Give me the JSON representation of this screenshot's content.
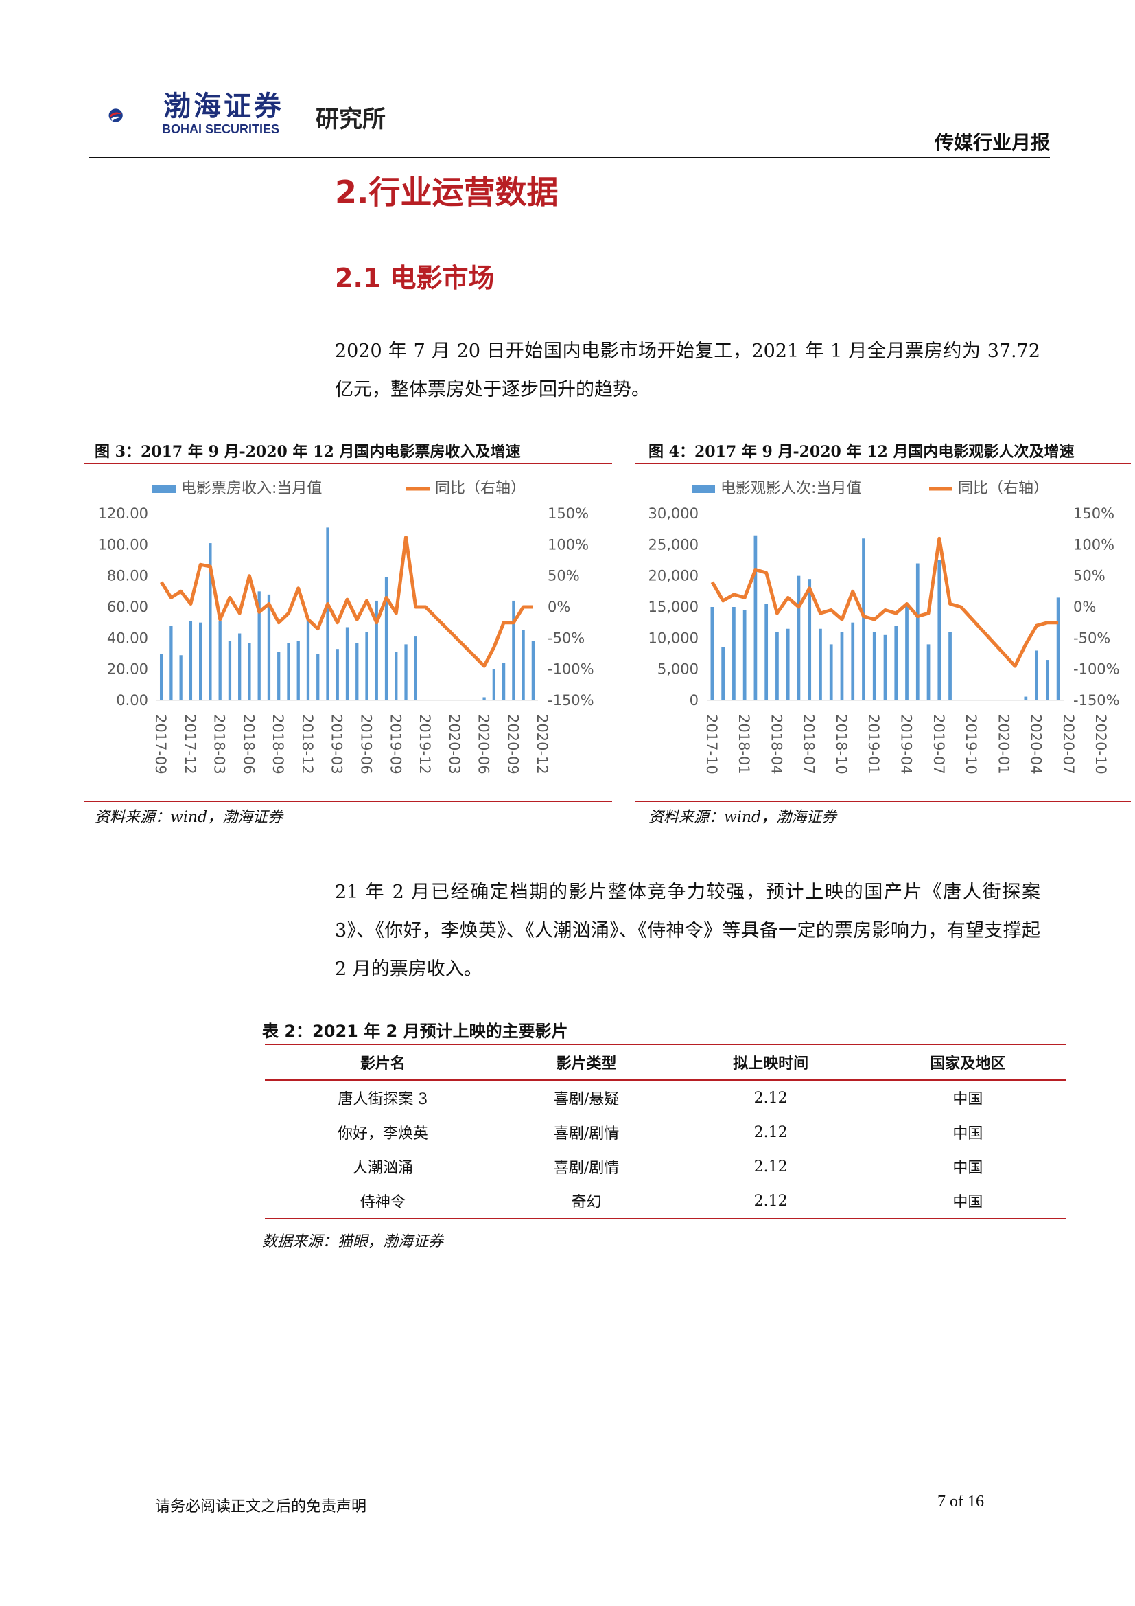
{
  "header": {
    "brand_cn": "渤海证券",
    "brand_en": "BOHAI SECURITIES",
    "institute": "研究所",
    "report_type": "传媒行业月报"
  },
  "section": {
    "title": "2.行业运营数据",
    "subtitle": "2.1 电影市场"
  },
  "paragraphs": {
    "p1": "2020 年 7 月 20 日开始国内电影市场开始复工，2021 年 1 月全月票房约为 37.72 亿元，整体票房处于逐步回升的趋势。",
    "p2": "21 年 2 月已经确定档期的影片整体竞争力较强，预计上映的国产片《唐人街探案 3》、《你好，李焕英》、《人潮汹涌》、《侍神令》等具备一定的票房影响力，有望支撑起 2 月的票房收入。"
  },
  "figures": {
    "fig3": {
      "caption": "图 3：2017 年 9 月-2020 年 12 月国内电影票房收入及增速",
      "source": "资料来源：wind，渤海证券"
    },
    "fig4": {
      "caption": "图 4：2017 年 9 月-2020 年 12 月国内电影观影人次及增速",
      "source": "资料来源：wind，渤海证券"
    }
  },
  "chart_data": [
    {
      "type": "bar",
      "legend": [
        "电影票房收入:当月值",
        "同比（右轴）"
      ],
      "ylim": [
        0,
        120
      ],
      "yticks": [
        "120.00",
        "100.00",
        "80.00",
        "60.00",
        "40.00",
        "20.00",
        "0.00"
      ],
      "y2lim": [
        -150,
        150
      ],
      "y2ticks": [
        "150%",
        "100%",
        "50%",
        "0%",
        "-50%",
        "-100%",
        "-150%"
      ],
      "xticks": [
        "2017-09",
        "2017-12",
        "2018-03",
        "2018-06",
        "2018-09",
        "2018-12",
        "2019-03",
        "2019-06",
        "2019-09",
        "2019-12",
        "2020-03",
        "2020-06",
        "2020-09",
        "2020-12"
      ],
      "colors": {
        "bar": "#5b9bd5",
        "line": "#ed7d31"
      },
      "series": [
        {
          "name": "电影票房收入:当月值",
          "values": [
            30,
            48,
            29,
            51,
            50,
            101,
            51,
            38,
            43,
            37,
            70,
            68,
            31,
            37,
            38,
            52,
            30,
            111,
            33,
            47,
            37,
            44,
            64,
            79,
            31,
            36,
            41,
            0,
            0,
            0,
            0,
            0,
            0,
            2,
            20,
            24,
            64,
            45,
            38
          ]
        },
        {
          "name": "同比（右轴）",
          "values": [
            40,
            15,
            25,
            5,
            68,
            65,
            -20,
            15,
            -10,
            50,
            -8,
            5,
            -25,
            -10,
            30,
            -20,
            -35,
            5,
            -25,
            12,
            -20,
            10,
            -25,
            15,
            -10,
            112,
            0,
            0,
            null,
            null,
            null,
            null,
            null,
            -95,
            -65,
            -25,
            -25,
            0,
            0
          ]
        }
      ]
    },
    {
      "type": "bar",
      "legend": [
        "电影观影人次:当月值",
        "同比（右轴）"
      ],
      "ylim": [
        0,
        30000
      ],
      "yticks": [
        "30,000",
        "25,000",
        "20,000",
        "15,000",
        "10,000",
        "5,000",
        "0"
      ],
      "y2lim": [
        -150,
        150
      ],
      "y2ticks": [
        "150%",
        "100%",
        "50%",
        "0%",
        "-50%",
        "-100%",
        "-150%"
      ],
      "xticks": [
        "2017-10",
        "2018-01",
        "2018-04",
        "2018-07",
        "2018-10",
        "2019-01",
        "2019-04",
        "2019-07",
        "2019-10",
        "2020-01",
        "2020-04",
        "2020-07",
        "2020-10"
      ],
      "colors": {
        "bar": "#5b9bd5",
        "line": "#ed7d31"
      },
      "series": [
        {
          "name": "电影观影人次:当月值",
          "values": [
            15000,
            8500,
            15000,
            14500,
            26500,
            15500,
            11000,
            11500,
            20000,
            19500,
            11500,
            9000,
            11000,
            12500,
            26000,
            11000,
            10500,
            12000,
            15500,
            22000,
            9000,
            22500,
            11000,
            0,
            0,
            0,
            0,
            0,
            0,
            600,
            8000,
            6500,
            16500
          ]
        },
        {
          "name": "同比（右轴）",
          "values": [
            40,
            10,
            20,
            15,
            60,
            55,
            -10,
            15,
            0,
            30,
            -10,
            -5,
            -20,
            25,
            -15,
            -20,
            -5,
            -10,
            5,
            -15,
            -10,
            110,
            5,
            0,
            null,
            null,
            null,
            null,
            -95,
            -60,
            -30,
            -25,
            -25
          ]
        }
      ]
    }
  ],
  "table": {
    "title": "表 2：2021 年 2 月预计上映的主要影片",
    "headers": [
      "影片名",
      "影片类型",
      "拟上映时间",
      "国家及地区"
    ],
    "rows": [
      [
        "唐人街探案 3",
        "喜剧/悬疑",
        "2.12",
        "中国"
      ],
      [
        "你好，李焕英",
        "喜剧/剧情",
        "2.12",
        "中国"
      ],
      [
        "人潮汹涌",
        "喜剧/剧情",
        "2.12",
        "中国"
      ],
      [
        "侍神令",
        "奇幻",
        "2.12",
        "中国"
      ]
    ],
    "source": "数据来源：猫眼，渤海证券"
  },
  "footer": {
    "note": "请务必阅读正文之后的免责声明",
    "page": "7 of 16"
  }
}
